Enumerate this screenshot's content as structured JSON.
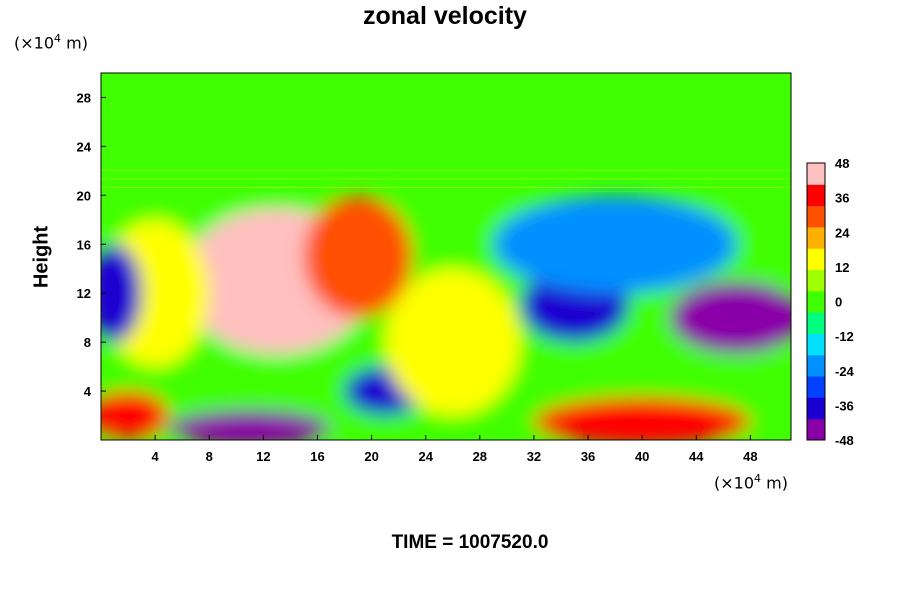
{
  "chart_data": {
    "type": "heatmap",
    "title": "zonal velocity",
    "ylabel": "Height",
    "xunit_prefix": "(×10",
    "xunit_exp": "4",
    "xunit_suffix": " m)",
    "yunit_prefix": "(×10",
    "yunit_exp": "4",
    "yunit_suffix": " m)",
    "footer": "TIME = 1007520.0",
    "x_ticks": [
      4,
      8,
      12,
      16,
      20,
      24,
      28,
      32,
      36,
      40,
      44,
      48
    ],
    "y_ticks": [
      4,
      8,
      12,
      16,
      20,
      24,
      28
    ],
    "xlim": [
      0,
      51
    ],
    "ylim": [
      0,
      30
    ],
    "colorbar": {
      "ticks": [
        48,
        36,
        24,
        12,
        0,
        -12,
        -24,
        -36,
        -48
      ],
      "range": [
        -48,
        48
      ],
      "colors": [
        "#8a00a8",
        "#1a00d0",
        "#0040ff",
        "#0090ff",
        "#00e0ff",
        "#00ff80",
        "#40ff00",
        "#a0ff00",
        "#ffff00",
        "#ffb000",
        "#ff5000",
        "#ff0000",
        "#ffc0c0"
      ]
    },
    "features": [
      {
        "x": 13,
        "y": 13,
        "rx": 7,
        "ry": 6,
        "value": 48
      },
      {
        "x": 19,
        "y": 15,
        "rx": 4,
        "ry": 5,
        "value": 32
      },
      {
        "x": 4,
        "y": 12,
        "rx": 4,
        "ry": 6,
        "value": 18
      },
      {
        "x": 1,
        "y": 12,
        "rx": 2,
        "ry": 4,
        "value": -40
      },
      {
        "x": 47,
        "y": 10,
        "rx": 5,
        "ry": 3,
        "value": -48
      },
      {
        "x": 35,
        "y": 11,
        "rx": 4,
        "ry": 3,
        "value": -38
      },
      {
        "x": 38,
        "y": 16,
        "rx": 9,
        "ry": 4,
        "value": -22
      },
      {
        "x": 21,
        "y": 4,
        "rx": 3,
        "ry": 2,
        "value": -44
      },
      {
        "x": 11,
        "y": 1,
        "rx": 6,
        "ry": 1.5,
        "value": -48
      },
      {
        "x": 26,
        "y": 8,
        "rx": 5,
        "ry": 6,
        "value": 12
      },
      {
        "x": 40,
        "y": 1.5,
        "rx": 8,
        "ry": 2,
        "value": 40
      },
      {
        "x": 2,
        "y": 2,
        "rx": 3,
        "ry": 2,
        "value": 36
      }
    ]
  }
}
